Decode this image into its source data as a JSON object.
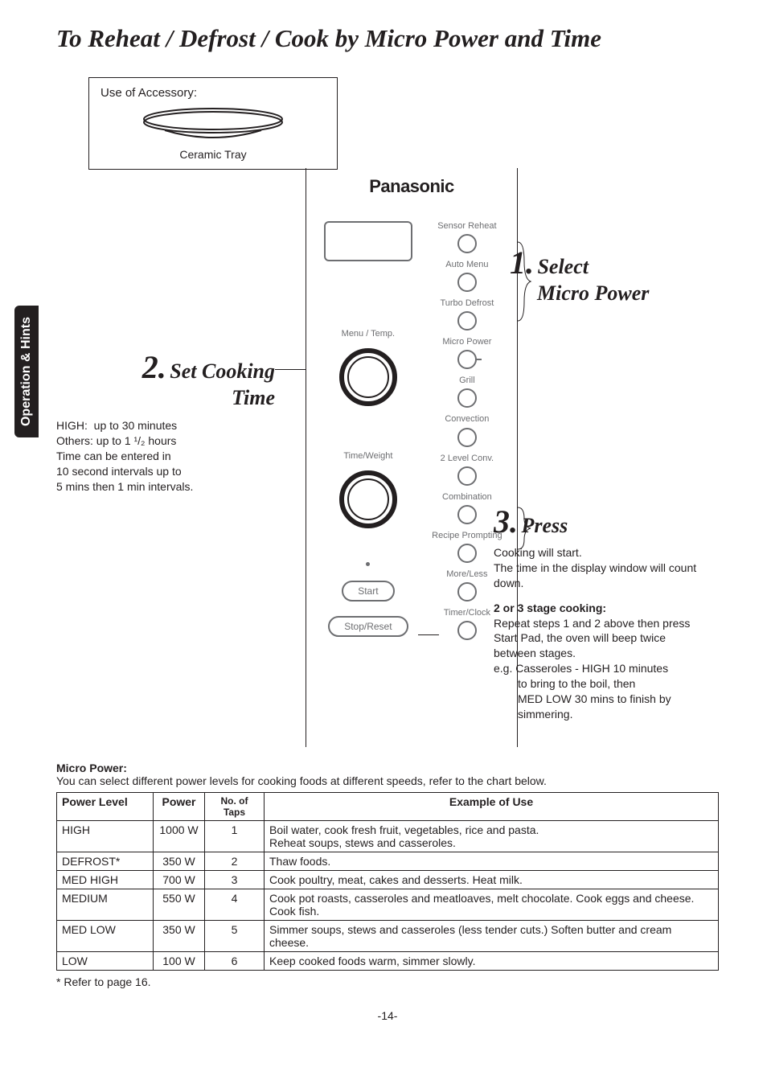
{
  "title": "To Reheat / Defrost / Cook by Micro Power and Time",
  "side_tab": "Operation & Hints",
  "accessory": {
    "label": "Use of Accessory:",
    "caption": "Ceramic Tray"
  },
  "panel": {
    "brand": "Panasonic",
    "left": {
      "menu_temp": "Menu / Temp.",
      "time_weight": "Time/Weight",
      "start": "Start",
      "stop": "Stop/Reset"
    },
    "right": {
      "sensor_reheat": "Sensor Reheat",
      "auto_menu": "Auto Menu",
      "turbo_defrost": "Turbo Defrost",
      "micro_power": "Micro Power",
      "grill": "Grill",
      "convection": "Convection",
      "two_level": "2 Level Conv.",
      "combination": "Combination",
      "recipe": "Recipe Prompting",
      "more_less": "More/Less",
      "timer_clock": "Timer/Clock"
    }
  },
  "steps": {
    "s1": {
      "num": "1.",
      "title": "Select",
      "title2": "Micro Power"
    },
    "s2": {
      "num": "2.",
      "title": "Set Cooking",
      "title2": "Time",
      "details_l1": "HIGH:  up to 30 minutes",
      "details_l2": "Others: up to 1 ¹/₂ hours",
      "details_l3": "Time can be entered in",
      "details_l4": "10 second intervals up to",
      "details_l5": "5 mins then 1 min intervals."
    },
    "s3": {
      "num": "3.",
      "title": "Press",
      "d1": "Cooking will start.",
      "d2": "The time in the display window will count down.",
      "sub": "2 or 3 stage cooking:",
      "d3": "Repeat steps 1 and 2 above then press Start Pad, the oven will beep twice between stages.",
      "d4": "e.g. Casseroles - HIGH 10 minutes",
      "d5": "to bring to the boil, then",
      "d6": "MED LOW 30 mins to finish by simmering."
    }
  },
  "micro_power": {
    "head": "Micro Power:",
    "desc": "You can select different power levels for cooking foods at different speeds, refer to the chart below.",
    "columns": [
      "Power Level",
      "Power",
      "No. of Taps",
      "Example of Use"
    ],
    "rows": [
      {
        "level": "HIGH",
        "power": "1000 W",
        "taps": "1",
        "use": "Boil water, cook fresh fruit, vegetables, rice and pasta.\nReheat soups, stews and casseroles."
      },
      {
        "level": "DEFROST*",
        "power": "350 W",
        "taps": "2",
        "use": "Thaw foods."
      },
      {
        "level": "MED HIGH",
        "power": "700 W",
        "taps": "3",
        "use": "Cook poultry, meat, cakes and desserts. Heat milk."
      },
      {
        "level": "MEDIUM",
        "power": "550 W",
        "taps": "4",
        "use": "Cook pot roasts, casseroles and meatloaves, melt chocolate. Cook eggs and cheese. Cook fish."
      },
      {
        "level": "MED LOW",
        "power": "350 W",
        "taps": "5",
        "use": "Simmer soups, stews and casseroles (less tender cuts.) Soften butter and cream cheese."
      },
      {
        "level": "LOW",
        "power": "100 W",
        "taps": "6",
        "use": "Keep cooked foods warm, simmer slowly."
      }
    ],
    "footnote": "* Refer to page 16."
  },
  "page_number": "-14-"
}
